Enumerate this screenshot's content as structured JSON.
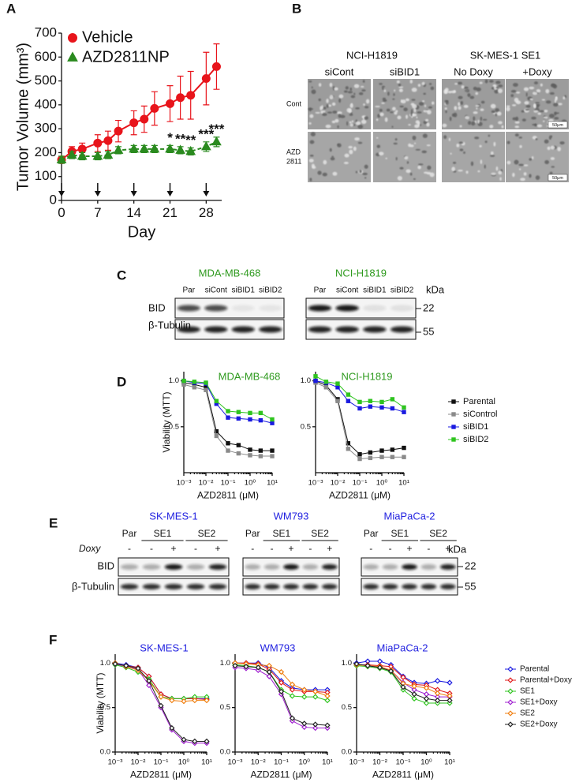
{
  "panel_labels": [
    "A",
    "B",
    "C",
    "D",
    "E",
    "F"
  ],
  "chart_data": [
    {
      "type": "line",
      "x_label": "Day",
      "y_label": "Tumor Volume (mm³)",
      "x": [
        0,
        2,
        4,
        7,
        9,
        11,
        14,
        16,
        18,
        21,
        23,
        25,
        28,
        30
      ],
      "xlim": [
        0,
        31
      ],
      "xticks": [
        0,
        7,
        14,
        21,
        28
      ],
      "ylim": [
        0,
        700
      ],
      "yticks": [
        0,
        100,
        200,
        300,
        400,
        500,
        600,
        700
      ],
      "legend": true,
      "series": [
        {
          "name": "Vehicle",
          "color": "#e8141b",
          "marker": "circle",
          "values": [
            170,
            205,
            215,
            240,
            250,
            290,
            325,
            340,
            385,
            405,
            430,
            440,
            510,
            560
          ],
          "errors": [
            15,
            20,
            25,
            35,
            40,
            45,
            50,
            55,
            70,
            75,
            90,
            100,
            110,
            95
          ]
        },
        {
          "name": "AZD2811NP",
          "color": "#2a8a1f",
          "marker": "triangle",
          "dashed": true,
          "values": [
            170,
            190,
            185,
            185,
            190,
            210,
            215,
            215,
            215,
            215,
            210,
            205,
            225,
            245
          ],
          "errors": [
            15,
            15,
            15,
            15,
            15,
            15,
            15,
            15,
            15,
            15,
            15,
            15,
            20,
            20
          ]
        }
      ],
      "annotations": [
        {
          "x": 21,
          "text": "*"
        },
        {
          "x": 23,
          "text": "**"
        },
        {
          "x": 25,
          "text": "**"
        },
        {
          "x": 28,
          "text": "***"
        },
        {
          "x": 30,
          "text": "***"
        }
      ]
    },
    {
      "type": "line",
      "title": "MDA-MB-468",
      "title_color": "#2e9a1e",
      "x_label": "AZD2811 (μM)",
      "y_label": "Viability (MTT)",
      "log_x": true,
      "x": [
        0.001,
        0.003,
        0.01,
        0.03,
        0.1,
        0.3,
        1,
        3,
        10
      ],
      "xlim": [
        0.001,
        10
      ],
      "xticks": [
        {
          "value": 0.001,
          "label": "10⁻³"
        },
        {
          "value": 0.01,
          "label": "10⁻²"
        },
        {
          "value": 0.1,
          "label": "10⁻¹"
        },
        {
          "value": 1,
          "label": "10⁰"
        },
        {
          "value": 10,
          "label": "10¹"
        }
      ],
      "ylim": [
        0,
        1.1
      ],
      "yticks": [
        {
          "value": 0.5,
          "label": "0.5"
        },
        {
          "value": 1,
          "label": "1.0"
        }
      ],
      "series": [
        {
          "color": "#111111",
          "marker": "square",
          "values": [
            0.98,
            0.96,
            0.93,
            0.45,
            0.32,
            0.3,
            0.25,
            0.24,
            0.24
          ]
        },
        {
          "color": "#8a8a8a",
          "marker": "square",
          "values": [
            0.96,
            0.93,
            0.9,
            0.4,
            0.24,
            0.21,
            0.19,
            0.18,
            0.18
          ]
        },
        {
          "color": "#1a1ae0",
          "marker": "square",
          "values": [
            1.0,
            0.98,
            0.97,
            0.75,
            0.6,
            0.59,
            0.58,
            0.57,
            0.54
          ]
        },
        {
          "color": "#2fc41f",
          "marker": "square",
          "values": [
            1.0,
            0.99,
            0.98,
            0.78,
            0.67,
            0.66,
            0.65,
            0.65,
            0.58
          ]
        }
      ]
    },
    {
      "type": "line",
      "title": "NCI-H1819",
      "title_color": "#2e9a1e",
      "x_label": "AZD2811 (μM)",
      "log_x": true,
      "x": [
        0.001,
        0.003,
        0.01,
        0.03,
        0.1,
        0.3,
        1,
        3,
        10
      ],
      "xlim": [
        0.001,
        10
      ],
      "xticks": [
        {
          "value": 0.001,
          "label": "10⁻³"
        },
        {
          "value": 0.01,
          "label": "10⁻²"
        },
        {
          "value": 0.1,
          "label": "10⁻¹"
        },
        {
          "value": 1,
          "label": "10⁰"
        },
        {
          "value": 10,
          "label": "10¹"
        }
      ],
      "ylim": [
        0,
        1.1
      ],
      "yticks": [
        {
          "value": 0.5,
          "label": "0.5"
        },
        {
          "value": 1,
          "label": "1.0"
        }
      ],
      "legend": true,
      "series": [
        {
          "name": "Parental",
          "color": "#111111",
          "marker": "square",
          "values": [
            1.0,
            0.95,
            0.8,
            0.32,
            0.2,
            0.22,
            0.24,
            0.25,
            0.27
          ]
        },
        {
          "name": "siControl",
          "color": "#8a8a8a",
          "marker": "square",
          "values": [
            0.98,
            0.93,
            0.78,
            0.26,
            0.15,
            0.16,
            0.17,
            0.17,
            0.17
          ]
        },
        {
          "name": "siBID1",
          "color": "#1a1ae0",
          "marker": "square",
          "values": [
            1.0,
            0.98,
            0.93,
            0.78,
            0.7,
            0.72,
            0.71,
            0.7,
            0.66
          ]
        },
        {
          "name": "siBID2",
          "color": "#2fc41f",
          "marker": "square",
          "values": [
            1.05,
            0.99,
            0.97,
            0.85,
            0.77,
            0.78,
            0.77,
            0.8,
            0.71
          ]
        }
      ]
    },
    {
      "type": "line",
      "title": "SK-MES-1",
      "title_color": "#2323e0",
      "x_label": "AZD2811 (μM)",
      "y_label": "Viability (MTT)",
      "log_x": true,
      "x": [
        0.001,
        0.003,
        0.01,
        0.03,
        0.1,
        0.3,
        1,
        3,
        10
      ],
      "xlim": [
        0.001,
        10
      ],
      "xticks": [
        {
          "value": 0.001,
          "label": "10⁻³"
        },
        {
          "value": 0.01,
          "label": "10⁻²"
        },
        {
          "value": 0.1,
          "label": "10⁻¹"
        },
        {
          "value": 1,
          "label": "10⁰"
        },
        {
          "value": 10,
          "label": "10¹"
        }
      ],
      "ylim": [
        0,
        1.1
      ],
      "yticks": [
        {
          "value": 0,
          "label": "0.0"
        },
        {
          "value": 0.5,
          "label": "0.5"
        },
        {
          "value": 1,
          "label": "1.0"
        }
      ],
      "series": [
        {
          "color": "#1a1ae0",
          "marker": "diamond",
          "values": [
            1.0,
            0.98,
            0.95,
            0.85,
            0.65,
            0.6,
            0.6,
            0.6,
            0.6
          ]
        },
        {
          "color": "#e01a1a",
          "marker": "diamond",
          "values": [
            0.99,
            0.97,
            0.95,
            0.85,
            0.65,
            0.6,
            0.6,
            0.6,
            0.59
          ]
        },
        {
          "color": "#2fc41f",
          "marker": "diamond",
          "values": [
            0.98,
            0.95,
            0.9,
            0.82,
            0.62,
            0.6,
            0.6,
            0.62,
            0.62
          ]
        },
        {
          "color": "#a020d0",
          "marker": "diamond",
          "values": [
            0.99,
            0.96,
            0.93,
            0.75,
            0.5,
            0.25,
            0.12,
            0.1,
            0.1
          ]
        },
        {
          "color": "#f07f10",
          "marker": "diamond",
          "values": [
            1.0,
            0.96,
            0.92,
            0.8,
            0.62,
            0.58,
            0.57,
            0.58,
            0.58
          ]
        },
        {
          "color": "#222222",
          "marker": "diamond",
          "values": [
            0.99,
            0.97,
            0.94,
            0.8,
            0.52,
            0.27,
            0.14,
            0.12,
            0.12
          ]
        }
      ]
    },
    {
      "type": "line",
      "title": "WM793",
      "title_color": "#2323e0",
      "x_label": "AZD2811 (μM)",
      "log_x": true,
      "x": [
        0.001,
        0.003,
        0.01,
        0.03,
        0.1,
        0.3,
        1,
        3,
        10
      ],
      "xlim": [
        0.001,
        10
      ],
      "xticks": [
        {
          "value": 0.001,
          "label": "10⁻³"
        },
        {
          "value": 0.01,
          "label": "10⁻²"
        },
        {
          "value": 0.1,
          "label": "10⁻¹"
        },
        {
          "value": 1,
          "label": "10⁰"
        },
        {
          "value": 10,
          "label": "10¹"
        }
      ],
      "ylim": [
        0,
        1.1
      ],
      "yticks": [
        {
          "value": 0,
          "label": "0.0"
        },
        {
          "value": 0.5,
          "label": "0.5"
        },
        {
          "value": 1,
          "label": "1.0"
        }
      ],
      "series": [
        {
          "color": "#1a1ae0",
          "marker": "diamond",
          "values": [
            1.0,
            1.0,
            1.0,
            0.95,
            0.8,
            0.72,
            0.7,
            0.7,
            0.7
          ]
        },
        {
          "color": "#e01a1a",
          "marker": "diamond",
          "values": [
            1.0,
            1.0,
            0.99,
            0.93,
            0.78,
            0.7,
            0.68,
            0.68,
            0.67
          ]
        },
        {
          "color": "#2fc41f",
          "marker": "diamond",
          "values": [
            0.98,
            0.97,
            0.95,
            0.9,
            0.7,
            0.63,
            0.62,
            0.62,
            0.58
          ]
        },
        {
          "color": "#a020d0",
          "marker": "diamond",
          "values": [
            0.95,
            0.94,
            0.92,
            0.85,
            0.65,
            0.35,
            0.28,
            0.27,
            0.27
          ]
        },
        {
          "color": "#f07f10",
          "marker": "diamond",
          "values": [
            1.0,
            0.99,
            0.98,
            0.97,
            0.9,
            0.76,
            0.7,
            0.68,
            0.63
          ]
        },
        {
          "color": "#222222",
          "marker": "diamond",
          "values": [
            0.97,
            0.96,
            0.95,
            0.9,
            0.68,
            0.38,
            0.32,
            0.31,
            0.3
          ]
        }
      ]
    },
    {
      "type": "line",
      "title": "MiaPaCa-2",
      "title_color": "#2323e0",
      "x_label": "AZD2811 (μM)",
      "log_x": true,
      "x": [
        0.001,
        0.003,
        0.01,
        0.03,
        0.1,
        0.3,
        1,
        3,
        10
      ],
      "xlim": [
        0.001,
        10
      ],
      "xticks": [
        {
          "value": 0.001,
          "label": "10⁻³"
        },
        {
          "value": 0.01,
          "label": "10⁻²"
        },
        {
          "value": 0.1,
          "label": "10⁻¹"
        },
        {
          "value": 1,
          "label": "10⁰"
        },
        {
          "value": 10,
          "label": "10¹"
        }
      ],
      "ylim": [
        0,
        1.1
      ],
      "yticks": [
        {
          "value": 0,
          "label": "0.0"
        },
        {
          "value": 0.5,
          "label": "0.5"
        },
        {
          "value": 1,
          "label": "1.0"
        }
      ],
      "legend": true,
      "series": [
        {
          "name": "Parental",
          "color": "#1a1ae0",
          "marker": "diamond",
          "values": [
            1.0,
            1.02,
            1.02,
            0.98,
            0.85,
            0.78,
            0.77,
            0.8,
            0.78
          ]
        },
        {
          "name": "Parental+Doxy",
          "color": "#e01a1a",
          "marker": "diamond",
          "values": [
            0.98,
            0.98,
            0.97,
            0.96,
            0.84,
            0.76,
            0.75,
            0.7,
            0.66
          ]
        },
        {
          "name": "SE1",
          "color": "#2fc41f",
          "marker": "diamond",
          "values": [
            0.97,
            0.96,
            0.94,
            0.9,
            0.7,
            0.6,
            0.55,
            0.55,
            0.55
          ]
        },
        {
          "name": "SE1+Doxy",
          "color": "#a020d0",
          "marker": "diamond",
          "values": [
            0.99,
            0.97,
            0.95,
            0.92,
            0.78,
            0.7,
            0.65,
            0.62,
            0.62
          ]
        },
        {
          "name": "SE2",
          "color": "#f07f10",
          "marker": "diamond",
          "values": [
            0.98,
            0.97,
            0.96,
            0.92,
            0.77,
            0.74,
            0.72,
            0.66,
            0.63
          ]
        },
        {
          "name": "SE2+Doxy",
          "color": "#222222",
          "marker": "diamond",
          "values": [
            0.99,
            0.97,
            0.95,
            0.91,
            0.73,
            0.65,
            0.6,
            0.58,
            0.58
          ]
        }
      ]
    }
  ],
  "microscopy": {
    "groups": [
      "NCI-H1819",
      "SK-MES-1 SE1"
    ],
    "columns": [
      "siCont",
      "siBID1",
      "No Doxy",
      "+Doxy"
    ],
    "row_labels": [
      [
        "Cont"
      ],
      [
        "AZD",
        "2811"
      ]
    ],
    "scale_bar": "50μm"
  },
  "blot_c": {
    "title_color": "#2e9a1e",
    "kda": "kDa",
    "rows": [
      "BID",
      "β-Tubulin"
    ],
    "markers": [
      "22",
      "55"
    ],
    "blots": [
      {
        "title": "MDA-MB-468",
        "lanes": [
          "Par",
          "siCont",
          "siBID1",
          "siBID2"
        ]
      },
      {
        "title": "NCI-H1819",
        "lanes": [
          "Par",
          "siCont",
          "siBID1",
          "siBID2"
        ]
      }
    ]
  },
  "blot_e": {
    "title_color": "#2323e0",
    "doxy_label": "Doxy",
    "kda": "kDa",
    "rows": [
      "BID",
      "β-Tubulin"
    ],
    "markers": [
      "22",
      "55"
    ],
    "blots": [
      {
        "title": "SK-MES-1",
        "groups": [
          "Par",
          "SE1",
          "SE2"
        ],
        "doxy": [
          "-",
          "-",
          "+",
          "-",
          "+"
        ]
      },
      {
        "title": "WM793",
        "groups": [
          "Par",
          "SE1",
          "SE2"
        ],
        "doxy": [
          "-",
          "-",
          "+",
          "-",
          "+"
        ]
      },
      {
        "title": "MiaPaCa-2",
        "groups": [
          "Par",
          "SE1",
          "SE2"
        ],
        "doxy": [
          "-",
          "-",
          "+",
          "-",
          "+"
        ]
      }
    ]
  }
}
